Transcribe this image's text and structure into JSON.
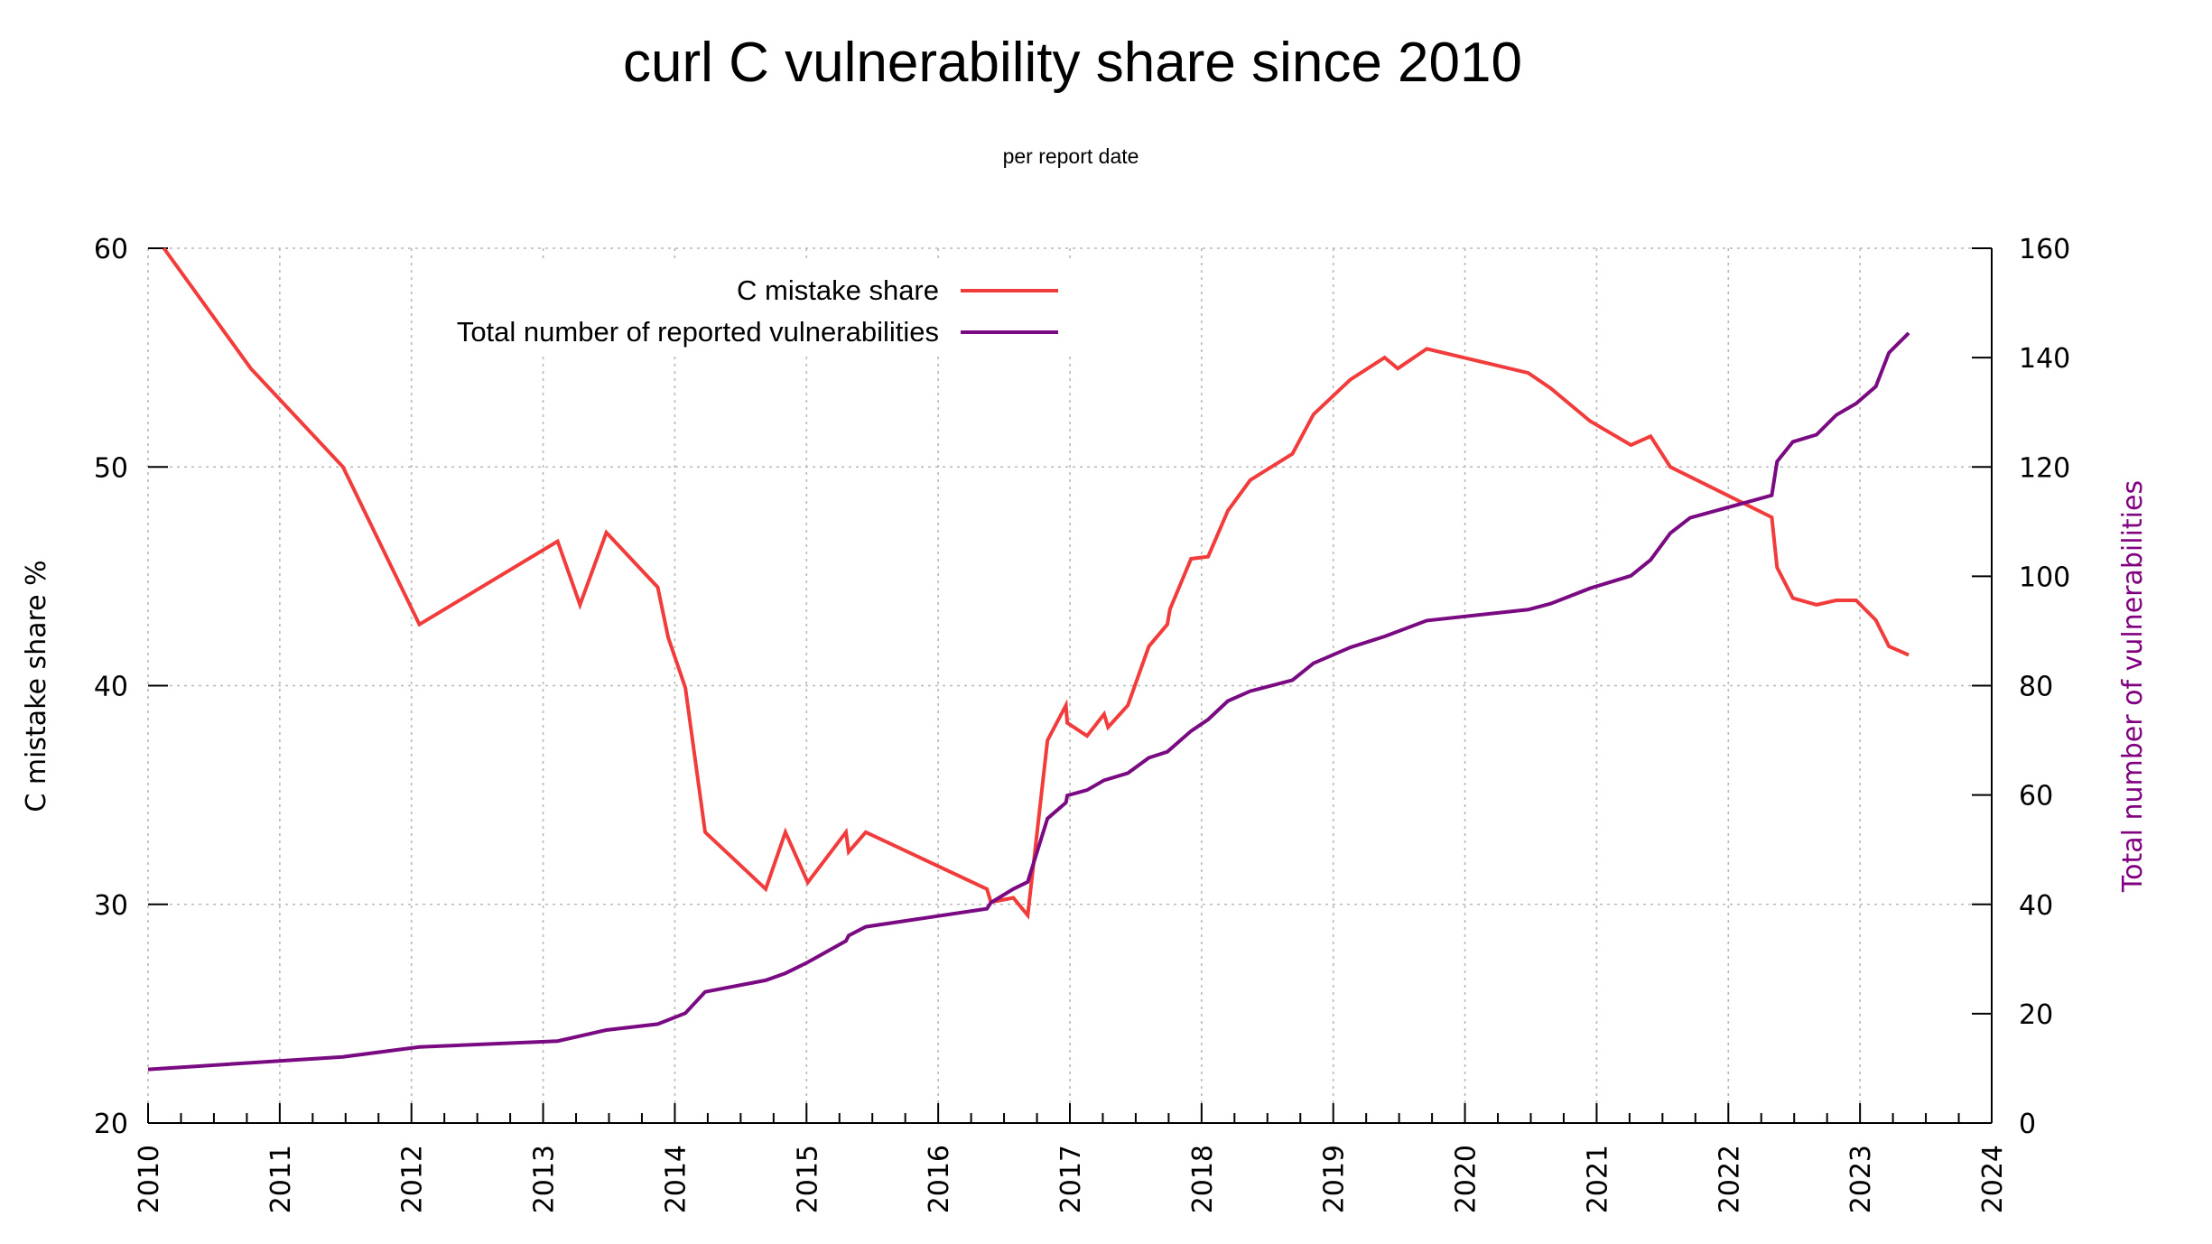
{
  "chart_data": {
    "type": "line",
    "title": "curl C vulnerability share since 2010",
    "subtitle": "per report date",
    "xlabel": "",
    "ylabel": "C mistake share %",
    "y2label": "Total number of vulnerabilities",
    "xlim": [
      2010,
      2024
    ],
    "ylim": [
      20,
      60
    ],
    "y2lim": [
      0,
      160
    ],
    "x_ticks": [
      "2010",
      "2011",
      "2012",
      "2013",
      "2014",
      "2015",
      "2016",
      "2017",
      "2018",
      "2019",
      "2020",
      "2021",
      "2022",
      "2023",
      "2024"
    ],
    "x_tick_values": [
      2010,
      2011,
      2012,
      2013,
      2014,
      2015,
      2016,
      2017,
      2018,
      2019,
      2020,
      2021,
      2022,
      2023,
      2024
    ],
    "x_minor_ticks_per_year": 3,
    "y_ticks": [
      "20",
      "30",
      "40",
      "50",
      "60"
    ],
    "y_tick_values": [
      20,
      30,
      40,
      50,
      60
    ],
    "y2_ticks": [
      "0",
      "20",
      "40",
      "60",
      "80",
      "100",
      "120",
      "140",
      "160"
    ],
    "y2_tick_values": [
      0,
      20,
      40,
      60,
      80,
      100,
      120,
      140,
      160
    ],
    "grid": true,
    "legend_position": "top-center",
    "colors": {
      "share": "#f23c3c",
      "total": "#7a0a82",
      "y2label": "#800080"
    },
    "series": [
      {
        "name": "C mistake share",
        "axis": "left",
        "color": "#f23c3c",
        "x": [
          2010.12,
          2010.78,
          2011.48,
          2012.06,
          2013.11,
          2013.28,
          2013.48,
          2013.87,
          2013.95,
          2014.08,
          2014.23,
          2014.69,
          2014.84,
          2015.01,
          2015.3,
          2015.32,
          2015.45,
          2016.37,
          2016.4,
          2016.57,
          2016.68,
          2016.83,
          2016.97,
          2016.98,
          2017.13,
          2017.26,
          2017.29,
          2017.44,
          2017.6,
          2017.74,
          2017.76,
          2017.92,
          2018.05,
          2018.2,
          2018.37,
          2018.69,
          2018.85,
          2019.13,
          2019.39,
          2019.49,
          2019.71,
          2020.48,
          2020.65,
          2020.95,
          2021.26,
          2021.41,
          2021.56,
          2022.33,
          2022.37,
          2022.49,
          2022.67,
          2022.82,
          2022.97,
          2023.12,
          2023.22,
          2023.37
        ],
        "values": [
          60.0,
          54.5,
          50.0,
          42.8,
          46.6,
          43.7,
          47.0,
          44.5,
          42.2,
          39.9,
          33.3,
          30.7,
          33.3,
          31.0,
          33.3,
          32.4,
          33.3,
          30.7,
          30.1,
          30.3,
          29.5,
          37.5,
          39.1,
          38.3,
          37.7,
          38.7,
          38.1,
          39.1,
          41.8,
          42.8,
          43.5,
          45.8,
          45.9,
          48.0,
          49.4,
          50.6,
          52.4,
          54.0,
          55.0,
          54.5,
          55.4,
          54.3,
          53.6,
          52.1,
          51.0,
          51.4,
          50.0,
          47.7,
          45.4,
          44.0,
          43.7,
          43.9,
          43.9,
          43.0,
          41.8,
          41.4
        ]
      },
      {
        "name": "Total number of reported vulnerabilities",
        "axis": "right",
        "color": "#7a0a82",
        "x": [
          2010.0,
          2011.48,
          2012.06,
          2013.11,
          2013.48,
          2013.87,
          2014.08,
          2014.23,
          2014.69,
          2014.84,
          2015.01,
          2015.3,
          2015.32,
          2015.45,
          2016.37,
          2016.4,
          2016.57,
          2016.68,
          2016.83,
          2016.97,
          2016.98,
          2017.13,
          2017.26,
          2017.44,
          2017.6,
          2017.74,
          2017.92,
          2018.05,
          2018.2,
          2018.37,
          2018.69,
          2018.85,
          2019.13,
          2019.39,
          2019.71,
          2020.48,
          2020.65,
          2020.95,
          2021.26,
          2021.41,
          2021.56,
          2021.71,
          2022.33,
          2022.37,
          2022.49,
          2022.67,
          2022.82,
          2022.97,
          2023.12,
          2023.22,
          2023.37
        ],
        "values": [
          9.8,
          12.1,
          13.9,
          15.0,
          17.0,
          18.1,
          20.1,
          24.0,
          26.1,
          27.4,
          29.4,
          33.3,
          34.3,
          35.9,
          39.2,
          40.3,
          42.8,
          44.1,
          55.7,
          58.6,
          59.9,
          60.9,
          62.7,
          64.0,
          66.8,
          67.9,
          71.7,
          73.8,
          77.2,
          79.0,
          81.0,
          84.1,
          87.0,
          89.0,
          91.9,
          93.9,
          95.0,
          97.8,
          100.1,
          103.0,
          107.9,
          110.7,
          114.8,
          121.0,
          124.6,
          125.9,
          129.5,
          131.6,
          134.7,
          140.9,
          144.5
        ]
      }
    ]
  }
}
